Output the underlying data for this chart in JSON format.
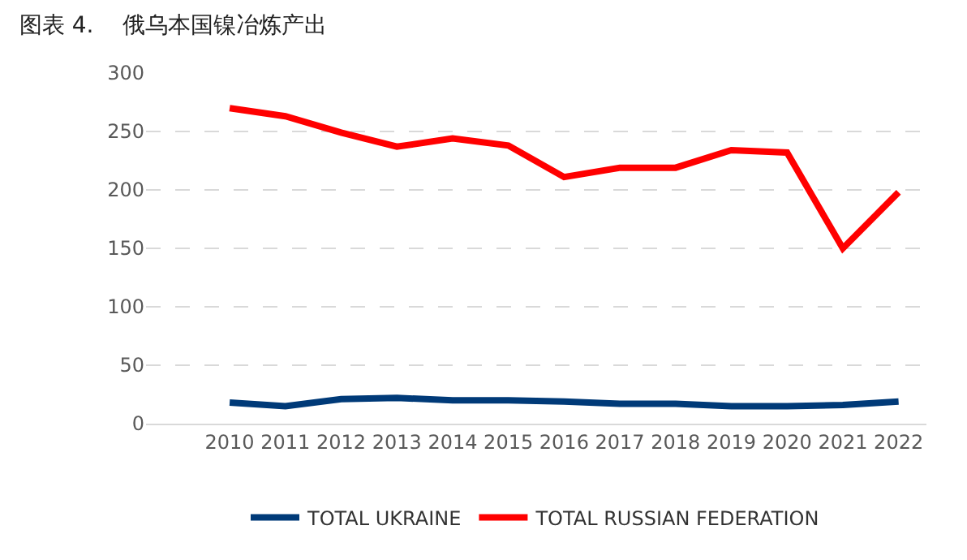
{
  "chart_data": {
    "type": "line",
    "title": "图表 4.    俄乌本国镍冶炼产出",
    "categories": [
      null,
      "2010",
      "2011",
      "2012",
      "2013",
      "2014",
      "2015",
      "2016",
      "2017",
      "2018",
      "2019",
      "2020",
      "2021",
      "2022"
    ],
    "series": [
      {
        "name": "TOTAL UKRAINE",
        "color": "#003a78",
        "values": [
          null,
          18,
          15,
          21,
          22,
          20,
          20,
          19,
          17,
          17,
          15,
          15,
          16,
          19
        ]
      },
      {
        "name": "TOTAL RUSSIAN FEDERATION",
        "color": "#ff0000",
        "values": [
          null,
          270,
          263,
          249,
          237,
          244,
          238,
          211,
          219,
          219,
          234,
          232,
          150,
          198
        ]
      }
    ],
    "ylim": [
      0,
      300
    ],
    "yticks": [
      0,
      50,
      100,
      150,
      200,
      250,
      300
    ],
    "grid": "y",
    "legend": "bottom",
    "marker": "none",
    "line_style": "solid"
  }
}
